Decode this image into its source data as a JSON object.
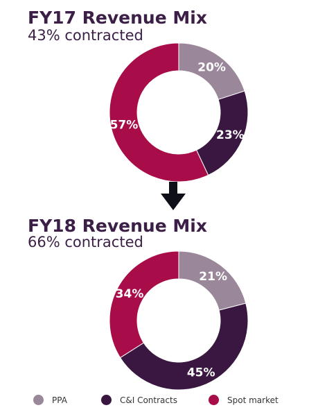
{
  "colors": {
    "ppa": "#9a8799",
    "ci": "#3a1740",
    "spot": "#a80d4a",
    "arrow": "#0f0f1a"
  },
  "chart_data": [
    {
      "type": "pie",
      "title": "FY17 Revenue Mix",
      "subtitle": "43% contracted",
      "slices": [
        {
          "name": "PPA",
          "value": 20,
          "label": "20%"
        },
        {
          "name": "C&I Contracts",
          "value": 23,
          "label": "23%"
        },
        {
          "name": "Spot market",
          "value": 57,
          "label": "57%"
        }
      ]
    },
    {
      "type": "pie",
      "title": "FY18 Revenue Mix",
      "subtitle": "66% contracted",
      "slices": [
        {
          "name": "PPA",
          "value": 21,
          "label": "21%"
        },
        {
          "name": "C&I Contracts",
          "value": 45,
          "label": "45%"
        },
        {
          "name": "Spot market",
          "value": 34,
          "label": "34%"
        }
      ]
    }
  ],
  "legend": {
    "items": [
      "PPA",
      "C&I Contracts",
      "Spot market"
    ],
    "placement": "bottom"
  }
}
